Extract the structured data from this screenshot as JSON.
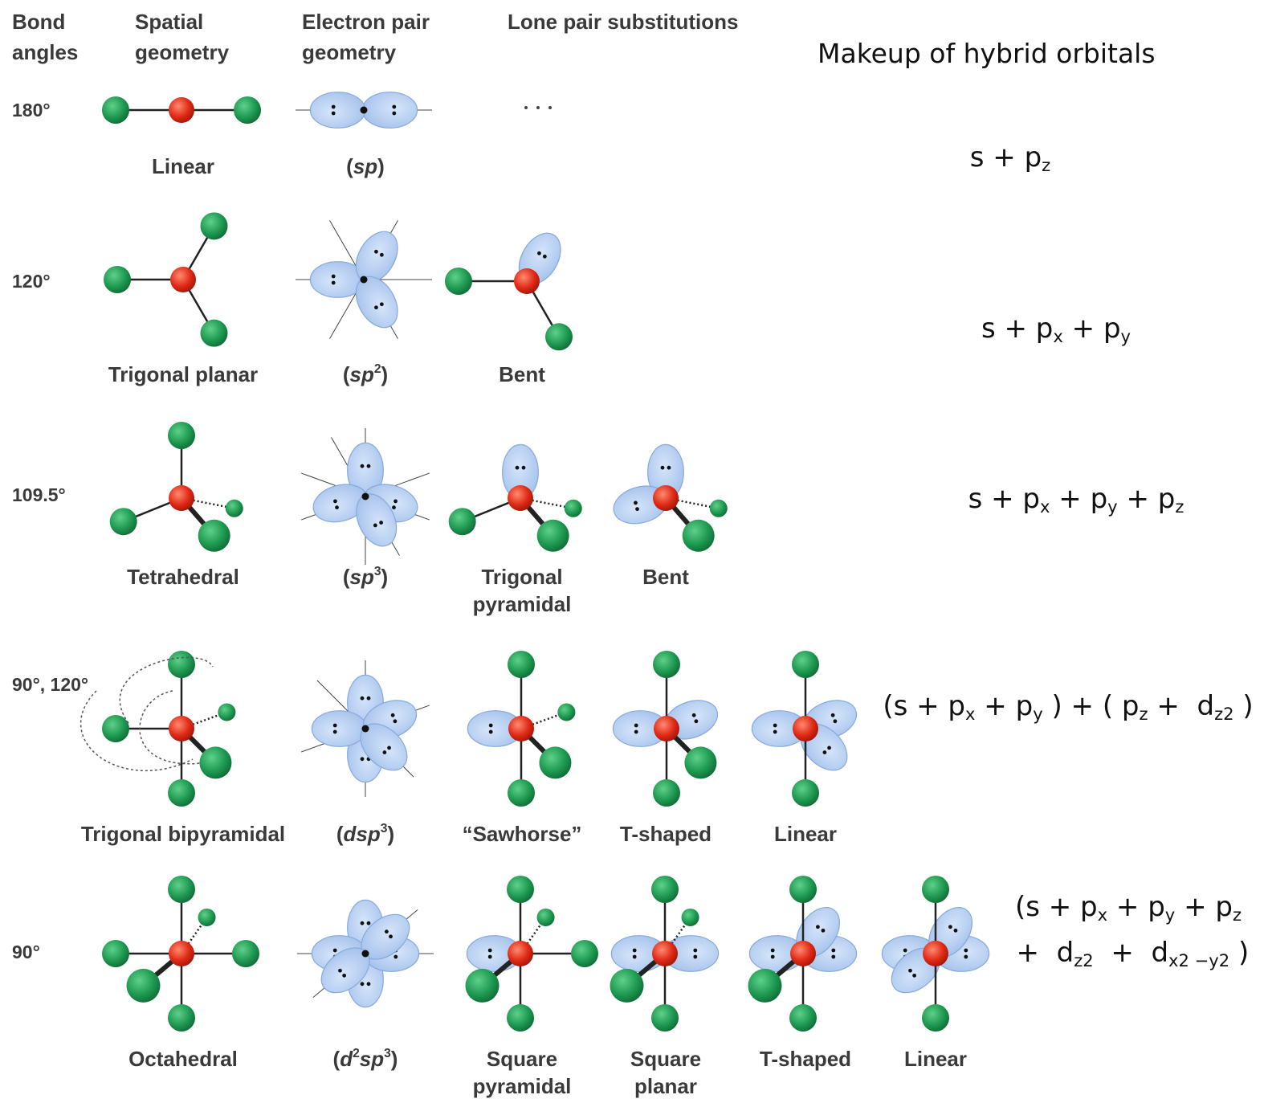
{
  "header": {
    "columns": [
      [
        "Bond",
        "angles"
      ],
      [
        "Spatial",
        "geometry"
      ],
      [
        "Electron pair",
        "geometry"
      ],
      [
        "Lone pair substitutions"
      ]
    ],
    "makeup_title": "Makeup of hybrid orbitals"
  },
  "rows": [
    {
      "angle": "180°",
      "spatial": [
        "Linear"
      ],
      "hybrid": [
        {
          "text": "("
        },
        {
          "italic": "sp"
        },
        {
          "text": ")"
        }
      ],
      "substitutions": [],
      "makeup": [
        [
          {
            "text": "s + p"
          },
          {
            "sub": "z"
          }
        ]
      ]
    },
    {
      "angle": "120°",
      "spatial": [
        "Trigonal planar"
      ],
      "hybrid": [
        {
          "text": "("
        },
        {
          "italic": "sp"
        },
        {
          "sup": "2"
        },
        {
          "text": ")"
        }
      ],
      "substitutions": [
        [
          "Bent"
        ]
      ],
      "makeup": [
        [
          {
            "text": "s + p"
          },
          {
            "sub": "x"
          },
          {
            "text": " + p"
          },
          {
            "sub": "y"
          }
        ]
      ]
    },
    {
      "angle": "109.5°",
      "spatial": [
        "Tetrahedral"
      ],
      "hybrid": [
        {
          "text": "("
        },
        {
          "italic": "sp"
        },
        {
          "sup": "3"
        },
        {
          "text": ")"
        }
      ],
      "substitutions": [
        [
          "Trigonal",
          "pyramidal"
        ],
        [
          "Bent"
        ]
      ],
      "makeup": [
        [
          {
            "text": "s + p"
          },
          {
            "sub": "x"
          },
          {
            "text": " + p"
          },
          {
            "sub": "y"
          },
          {
            "text": " + p"
          },
          {
            "sub": "z"
          }
        ]
      ]
    },
    {
      "angle": "90°, 120°",
      "spatial": [
        "Trigonal bipyramidal"
      ],
      "hybrid": [
        {
          "text": "("
        },
        {
          "italic": "dsp"
        },
        {
          "sup": "3"
        },
        {
          "text": ")"
        }
      ],
      "substitutions": [
        [
          "“Sawhorse”"
        ],
        [
          "T-shaped"
        ],
        [
          "Linear"
        ]
      ],
      "makeup": [
        [
          {
            "text": "(s + p"
          },
          {
            "sub": "x"
          },
          {
            "text": " + p"
          },
          {
            "sub": "y"
          },
          {
            "text": " ) + ( p"
          },
          {
            "sub": "z"
          },
          {
            "text": " +  d"
          },
          {
            "sub": "z2"
          },
          {
            "text": " )"
          }
        ]
      ]
    },
    {
      "angle": "90°",
      "spatial": [
        "Octahedral"
      ],
      "hybrid": [
        {
          "text": "("
        },
        {
          "italic": "d"
        },
        {
          "sup": "2"
        },
        {
          "italic": "sp"
        },
        {
          "sup": "3"
        },
        {
          "text": ")"
        }
      ],
      "substitutions": [
        [
          "Square",
          "pyramidal"
        ],
        [
          "Square",
          "planar"
        ],
        [
          "T-shaped"
        ],
        [
          "Linear"
        ]
      ],
      "makeup": [
        [
          {
            "text": "(s + p"
          },
          {
            "sub": "x"
          },
          {
            "text": " + p"
          },
          {
            "sub": "y"
          },
          {
            "text": " + p"
          },
          {
            "sub": "z"
          }
        ],
        [
          {
            "text": " +  d"
          },
          {
            "sub": "z2"
          },
          {
            "text": "  +  d"
          },
          {
            "sub": "x2 −y2"
          },
          {
            "text": " )"
          }
        ]
      ]
    }
  ]
}
